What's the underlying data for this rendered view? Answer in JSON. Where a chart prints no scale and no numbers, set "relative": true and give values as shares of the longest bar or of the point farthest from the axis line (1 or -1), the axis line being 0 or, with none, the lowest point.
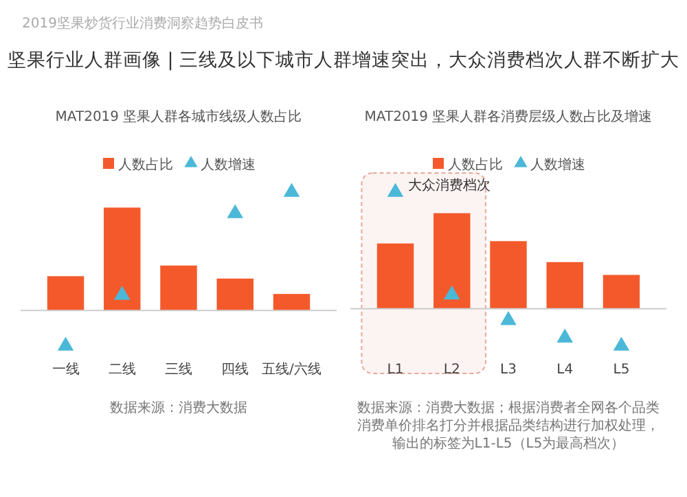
{
  "chart_data": [
    {
      "type": "other",
      "title": "坚果行业人群画像 | 三线及以下城市人群增速突出，大众消费档次人群不断扩大",
      "subtitle": "2019坚果炒货行业消费洞察趋势白皮书"
    },
    {
      "type": "bar",
      "title": "MAT2019 坚果人群各城市线级人数占比",
      "relative": true,
      "categories": [
        "一线",
        "二线",
        "三线",
        "四线",
        "五线/六线"
      ],
      "legend": "top",
      "tick_labels": "x",
      "series": [
        {
          "name": "人数占比",
          "color": "#f4592b",
          "values": [
            0.29,
            0.87,
            0.38,
            0.27,
            0.14
          ]
        },
        {
          "name": "人数增速",
          "type": "scatter",
          "marker": "triangle",
          "color": "#4bb8d8",
          "values": [
            -0.3,
            0.13,
            null,
            0.82,
            1
          ]
        }
      ],
      "annotations": [
        "数据来源：消费大数据"
      ]
    },
    {
      "type": "bar",
      "title": "MAT2019 坚果人群各消费层级人数占比及增速",
      "relative": true,
      "categories": [
        "L1",
        "L2",
        "L3",
        "L4",
        "L5"
      ],
      "legend": "top",
      "tick_labels": "x",
      "series": [
        {
          "name": "人数占比",
          "color": "#f4592b",
          "values": [
            0.56,
            0.82,
            0.58,
            0.4,
            0.29
          ]
        },
        {
          "name": "人数增速",
          "type": "scatter",
          "marker": "triangle",
          "color": "#4bb8d8",
          "values": [
            1,
            0.12,
            -0.1,
            -0.25,
            -0.32
          ]
        }
      ],
      "bands": [
        {
          "axis": "x",
          "from": "L1",
          "to": "L2",
          "label": "大众消费档次",
          "color": "#e8a89a"
        }
      ],
      "annotations": [
        "数据来源：消费大数据；根据消费者全网各个品类消费单价排名打分并根据品类结构进行加权处理，输出的标签为L1-L5（L5为最高档次）"
      ]
    }
  ]
}
